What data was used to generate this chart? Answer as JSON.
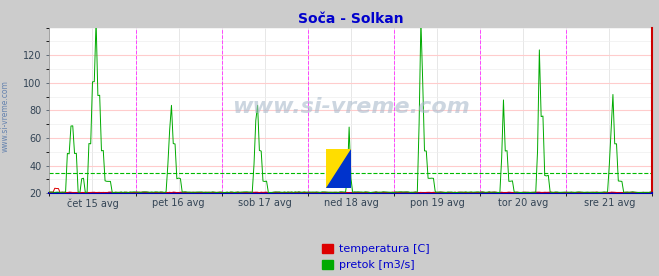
{
  "title": "Soča - Solkan",
  "title_color": "#0000cc",
  "bg_color": "#cccccc",
  "plot_bg_color": "#ffffff",
  "grid_color_major_h": "#ffcccc",
  "grid_color_minor_h": "#eeeeee",
  "grid_color_v": "#dddddd",
  "ylim": [
    20,
    140
  ],
  "yticks": [
    20,
    40,
    60,
    80,
    100,
    120
  ],
  "x_labels": [
    "čet 15 avg",
    "pet 16 avg",
    "sob 17 avg",
    "ned 18 avg",
    "pon 19 avg",
    "tor 20 avg",
    "sre 21 avg"
  ],
  "n_points": 336,
  "vline_color": "#ff44ff",
  "hline_dashed_color": "#00bb00",
  "hline_dashed_value": 35,
  "temp_color": "#dd0000",
  "flow_color": "#00aa00",
  "temp_baseline": 20.5,
  "legend_temp_label": "temperatura [C]",
  "legend_flow_label": "pretok [m3/s]",
  "left_label": "www.si-vreme.com",
  "left_label_color": "#5577aa",
  "watermark": "www.si-vreme.com",
  "watermark_color": "#aabbcc",
  "border_bottom_color": "#0000bb",
  "border_right_color": "#cc0000",
  "tick_label_color": "#334455",
  "title_fontsize": 10,
  "tick_fontsize": 7,
  "legend_fontsize": 8
}
